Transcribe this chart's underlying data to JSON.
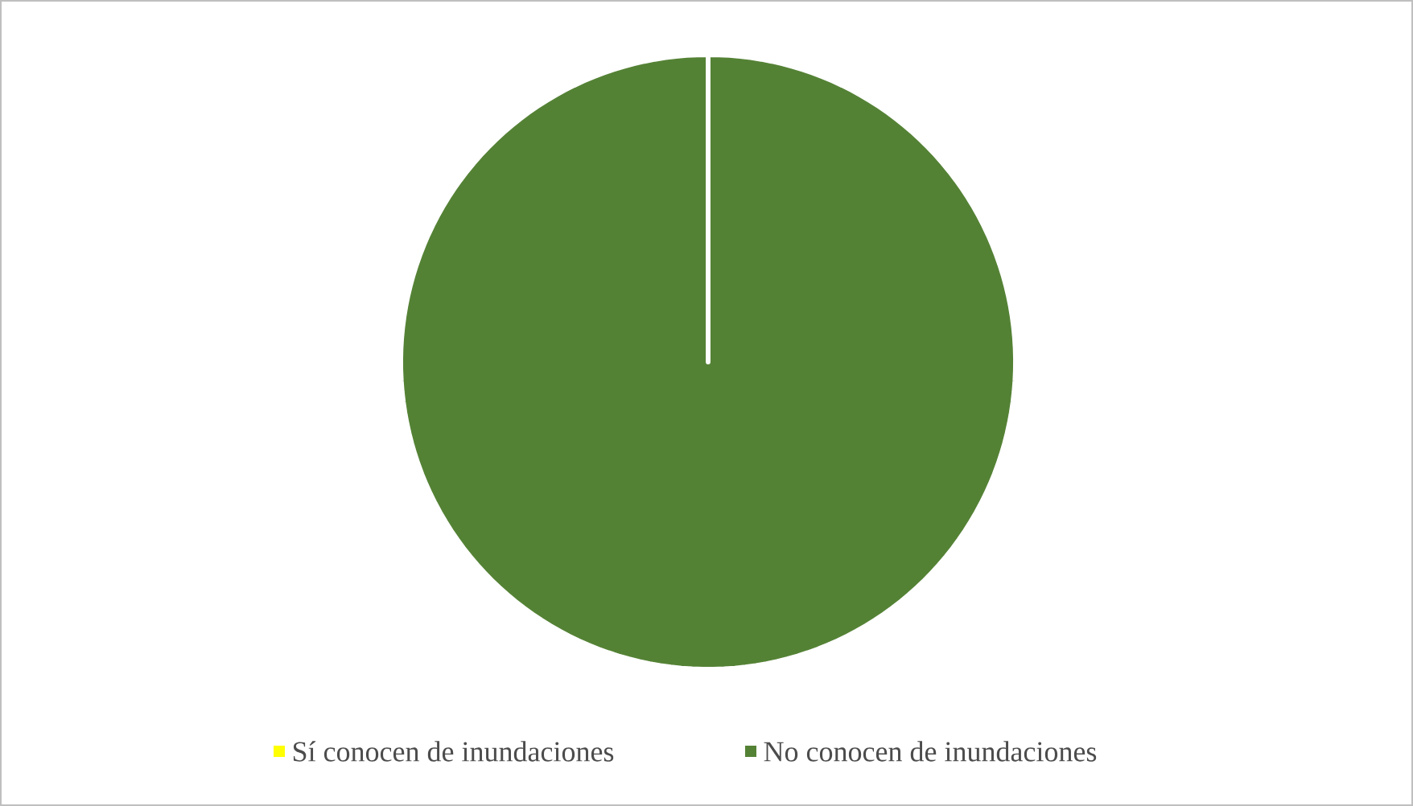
{
  "chart_data": {
    "type": "pie",
    "categories": [
      "Sí conocen de inundaciones",
      "No conocen de inundaciones"
    ],
    "values": [
      0,
      100
    ],
    "colors": [
      "#ffff00",
      "#548235"
    ],
    "legend": "bottom"
  }
}
